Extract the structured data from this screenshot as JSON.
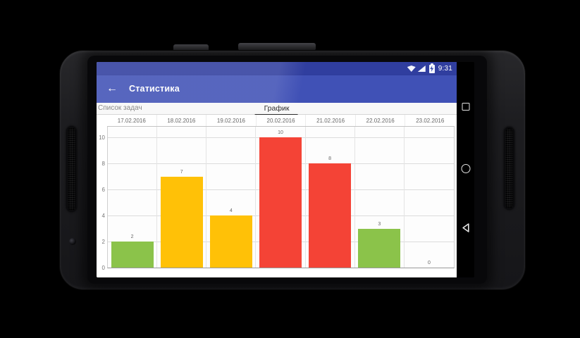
{
  "status_bar": {
    "time": "9:31",
    "icons": [
      "wifi-icon",
      "cell-signal-icon",
      "battery-charging-icon"
    ]
  },
  "app_bar": {
    "back_glyph": "←",
    "title": "Статистика"
  },
  "tabs": {
    "items": [
      {
        "label": "Список задач",
        "selected": false
      },
      {
        "label": "График",
        "selected": true
      }
    ]
  },
  "chart_data": {
    "type": "bar",
    "title": "",
    "categories": [
      "17.02.2016",
      "18.02.2016",
      "19.02.2016",
      "20.02.2016",
      "21.02.2016",
      "22.02.2016",
      "23.02.2016"
    ],
    "values": [
      2,
      7,
      4,
      10,
      8,
      3,
      0
    ],
    "bar_colors": [
      "#8BC34A",
      "#FFC107",
      "#FFC107",
      "#F44336",
      "#F44336",
      "#8BC34A",
      "#8BC34A"
    ],
    "value_labels": [
      2,
      7,
      4,
      10,
      8,
      3,
      0
    ],
    "y_ticks": [
      0,
      2,
      4,
      6,
      8,
      10
    ],
    "ylim": [
      0,
      10.8
    ],
    "xlabel": "",
    "ylabel": "",
    "grid": true,
    "legend": false
  },
  "nav_bar": {
    "icons": [
      "recents-icon",
      "home-icon",
      "back-icon"
    ]
  },
  "colors": {
    "status_bar": "#2E3C9E",
    "app_bar": "#3E4FB5",
    "bar_green": "#8BC34A",
    "bar_amber": "#FFC107",
    "bar_red": "#F44336"
  }
}
